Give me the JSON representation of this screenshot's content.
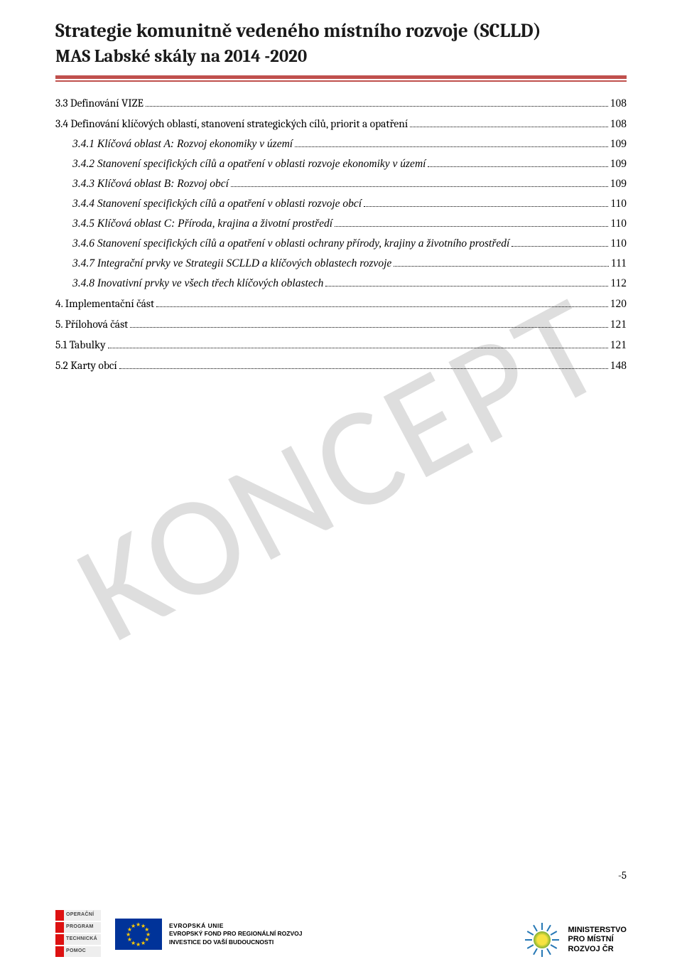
{
  "header": {
    "title_main": "Strategie komunitně vedeného místního rozvoje (SCLLD)",
    "title_sub": "MAS Labské skály na 2014 -2020"
  },
  "watermark": "KONCEPT",
  "toc": [
    {
      "indent": 0,
      "italic": false,
      "label": "3.3 Definování VIZE",
      "page": "108"
    },
    {
      "indent": 0,
      "italic": false,
      "label": "3.4 Definování klíčových oblastí, stanovení strategických cílů, priorit a opatření",
      "page": "108"
    },
    {
      "indent": 1,
      "italic": true,
      "label": "3.4.1 Klíčová oblast  A: Rozvoj ekonomiky v území",
      "page": "109"
    },
    {
      "indent": 1,
      "italic": true,
      "label": "3.4.2 Stanovení specifických cílů a opatření v oblasti rozvoje ekonomiky v území",
      "page": "109"
    },
    {
      "indent": 1,
      "italic": true,
      "label": "3.4.3 Klíčová oblast B: Rozvoj obcí",
      "page": "109"
    },
    {
      "indent": 1,
      "italic": true,
      "label": "3.4.4 Stanovení  specifických cílů a opatření v oblasti  rozvoje obcí",
      "page": "110"
    },
    {
      "indent": 1,
      "italic": true,
      "label": "3.4.5 Klíčová oblast C: Příroda, krajina  a životní prostředí",
      "page": "110"
    },
    {
      "indent": 1,
      "italic": true,
      "label": "3.4.6 Stanovení specifických cílů a opatření v oblasti  ochrany přírody, krajiny a životního prostředí",
      "page": "110"
    },
    {
      "indent": 1,
      "italic": true,
      "label": "3.4.7 Integrační prvky ve Strategii SCLLD a  klíčových oblastech rozvoje",
      "page": "111"
    },
    {
      "indent": 1,
      "italic": true,
      "label": "3.4.8 Inovativní prvky ve všech třech klíčových oblastech",
      "page": "112"
    },
    {
      "indent": 0,
      "italic": false,
      "label": "4. Implementační část",
      "page": "120"
    },
    {
      "indent": 0,
      "italic": false,
      "label": "5. Přílohová část",
      "page": "121"
    },
    {
      "indent": 0,
      "italic": false,
      "label": "5.1 Tabulky",
      "page": "121"
    },
    {
      "indent": 0,
      "italic": false,
      "label": "5.2 Karty obcí",
      "page": "148"
    }
  ],
  "page_number": "-5",
  "footer": {
    "op_lines": [
      "OPERAČNÍ",
      "PROGRAM",
      "TECHNICKÁ",
      "POMOC"
    ],
    "eu_line1": "EVROPSKÁ UNIE",
    "eu_line2": "EVROPSKÝ FOND PRO REGIONÁLNÍ ROZVOJ",
    "eu_line3": "INVESTICE DO VAŠÍ BUDOUCNOSTI",
    "mmr_line1": "MINISTERSTVO",
    "mmr_line2": "PRO MÍSTNÍ",
    "mmr_line3": "ROZVOJ ČR"
  },
  "colors": {
    "rule": "#c0504d",
    "eu_flag_bg": "#003399",
    "eu_star": "#ffcc00"
  }
}
